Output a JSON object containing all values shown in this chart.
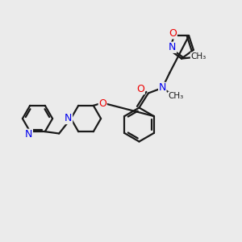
{
  "bg_color": "#ebebeb",
  "bond_color": "#1a1a1a",
  "bond_width": 1.6,
  "atom_colors": {
    "N": "#0000ee",
    "O": "#ee0000",
    "C": "#1a1a1a"
  },
  "font_size": 8.5,
  "fig_size": [
    3.0,
    3.0
  ],
  "dpi": 100,
  "xlim": [
    0,
    10
  ],
  "ylim": [
    0,
    10
  ]
}
